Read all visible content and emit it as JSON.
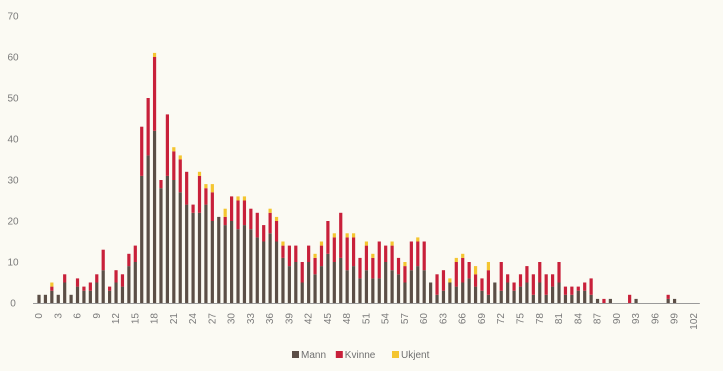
{
  "chart_data": {
    "type": "bar",
    "stacked": true,
    "x": [
      0,
      1,
      2,
      3,
      4,
      5,
      6,
      7,
      8,
      9,
      10,
      11,
      12,
      13,
      14,
      15,
      16,
      17,
      18,
      19,
      20,
      21,
      22,
      23,
      24,
      25,
      26,
      27,
      28,
      29,
      30,
      31,
      32,
      33,
      34,
      35,
      36,
      37,
      38,
      39,
      40,
      41,
      42,
      43,
      44,
      45,
      46,
      47,
      48,
      49,
      50,
      51,
      52,
      53,
      54,
      55,
      56,
      57,
      58,
      59,
      60,
      61,
      62,
      63,
      64,
      65,
      66,
      67,
      68,
      69,
      70,
      71,
      72,
      73,
      74,
      75,
      76,
      77,
      78,
      79,
      80,
      81,
      82,
      83,
      84,
      85,
      86,
      87,
      88,
      89,
      90,
      91,
      92,
      93,
      94,
      95,
      96,
      97,
      98,
      99,
      100,
      101,
      102
    ],
    "x_tick_labels": [
      "0",
      "3",
      "6",
      "9",
      "12",
      "15",
      "18",
      "21",
      "24",
      "27",
      "30",
      "33",
      "36",
      "39",
      "42",
      "45",
      "48",
      "51",
      "54",
      "57",
      "60",
      "63",
      "66",
      "69",
      "72",
      "75",
      "78",
      "81",
      "84",
      "87",
      "90",
      "93",
      "96",
      "99",
      "102"
    ],
    "ylim": [
      0,
      70
    ],
    "y_ticks": [
      0,
      10,
      20,
      30,
      40,
      50,
      60,
      70
    ],
    "grid": false,
    "legend_position": "bottom",
    "series": [
      {
        "name": "Mann",
        "color": "#5b4e46",
        "values": [
          2,
          2,
          3,
          2,
          5,
          2,
          4,
          3,
          3,
          5,
          8,
          3,
          5,
          4,
          9,
          10,
          31,
          36,
          42,
          28,
          31,
          30,
          27,
          24,
          22,
          22,
          24,
          20,
          21,
          19,
          20,
          18,
          19,
          18,
          16,
          15,
          17,
          15,
          11,
          9,
          10,
          5,
          10,
          7,
          9,
          12,
          10,
          11,
          8,
          9,
          6,
          8,
          6,
          6,
          10,
          8,
          7,
          5,
          8,
          9,
          8,
          5,
          2,
          3,
          5,
          4,
          5,
          6,
          4,
          3,
          2,
          5,
          3,
          5,
          3,
          4,
          5,
          2,
          5,
          2,
          4,
          5,
          2,
          2,
          3,
          3,
          2,
          1,
          0,
          1,
          0,
          0,
          0,
          1,
          0,
          0,
          0,
          0,
          1,
          1,
          0,
          0,
          0
        ]
      },
      {
        "name": "Kvinne",
        "color": "#c8203a",
        "values": [
          0,
          0,
          1,
          0,
          2,
          0,
          2,
          1,
          2,
          2,
          5,
          1,
          3,
          3,
          3,
          4,
          12,
          14,
          18,
          2,
          15,
          7,
          8,
          8,
          2,
          9,
          4,
          7,
          0,
          2,
          6,
          7,
          6,
          5,
          6,
          4,
          5,
          5,
          3,
          5,
          4,
          5,
          4,
          4,
          5,
          8,
          6,
          11,
          8,
          7,
          5,
          6,
          5,
          9,
          4,
          6,
          4,
          4,
          7,
          6,
          7,
          0,
          5,
          5,
          0,
          6,
          6,
          4,
          3,
          3,
          6,
          0,
          7,
          2,
          2,
          3,
          4,
          5,
          5,
          5,
          3,
          5,
          2,
          2,
          1,
          2,
          4,
          0,
          1,
          0,
          0,
          0,
          2,
          0,
          0,
          0,
          0,
          0,
          1,
          0,
          0,
          0,
          0
        ]
      },
      {
        "name": "Ukjent",
        "color": "#f4c530",
        "values": [
          0,
          0,
          1,
          0,
          0,
          0,
          0,
          0,
          0,
          0,
          0,
          0,
          0,
          0,
          0,
          0,
          0,
          0,
          1,
          0,
          0,
          1,
          1,
          0,
          0,
          1,
          1,
          2,
          0,
          2,
          0,
          1,
          1,
          0,
          0,
          0,
          1,
          1,
          1,
          0,
          0,
          0,
          0,
          1,
          1,
          0,
          1,
          0,
          1,
          1,
          0,
          1,
          1,
          0,
          0,
          1,
          0,
          1,
          0,
          1,
          0,
          0,
          0,
          0,
          1,
          1,
          1,
          0,
          2,
          0,
          2,
          0,
          0,
          0,
          0,
          0,
          0,
          0,
          0,
          0,
          0,
          0,
          0,
          0,
          0,
          0,
          0,
          0,
          0,
          0,
          0,
          0,
          0,
          0,
          0,
          0,
          0,
          0,
          0,
          0,
          0,
          0,
          0
        ]
      }
    ]
  }
}
